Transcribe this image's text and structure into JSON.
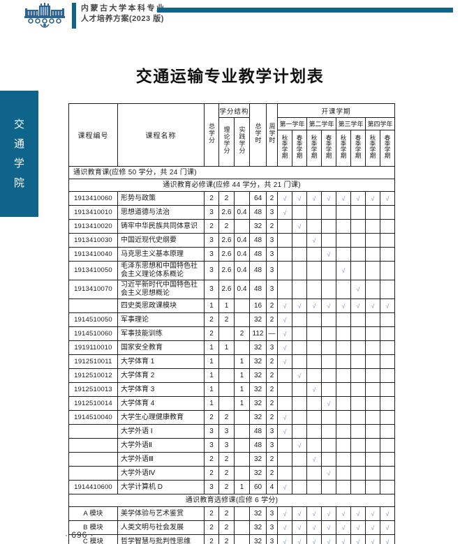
{
  "colors": {
    "accent": "#0f648b",
    "logo": "#2d6391",
    "check": "#7b93bd",
    "border": "#1c1c1c"
  },
  "masthead": {
    "line1": "内蒙古大学本科专业",
    "line2": "人才培养方案(2023 版)",
    "logo_icon": "university-emblem"
  },
  "sidebar": {
    "label": "交通学院",
    "chars": [
      "交",
      "通",
      "学",
      "院"
    ]
  },
  "page": {
    "title": "交通运输专业教学计划表",
    "footer": "· 696 ·"
  },
  "table": {
    "check_glyph": "√",
    "dash_glyph": "—",
    "headers": {
      "course_id": "课程编号",
      "course_name": "课程名称",
      "total_credits": "总学分",
      "credit_structure": "学分结构",
      "theory_credits": "理论学分",
      "practice_credits": "实践学分",
      "total_hours": "总学时",
      "weekly_hours": "周学时",
      "semesters": "开课学期",
      "years": [
        "第一学年",
        "第二学年",
        "第三学年",
        "第四学年"
      ],
      "fall": "秋季学期",
      "spring": "春季学期"
    },
    "rows": [
      {
        "type": "section",
        "align": "left",
        "label": "通识教育课(应修 50 学分，共 24 门课)"
      },
      {
        "type": "section",
        "align": "center",
        "label": "通识教育必修课(应修 44 学分，共 21 门课)"
      },
      {
        "type": "course",
        "id": "1913410060",
        "name": "形势与政策",
        "credits": "2",
        "theory": "2",
        "practice": "",
        "hours": "64",
        "weekly": "2",
        "checks": [
          1,
          1,
          1,
          1,
          1,
          1,
          1,
          1
        ]
      },
      {
        "type": "course",
        "id": "1913410010",
        "name": "思想道德与法治",
        "credits": "3",
        "theory": "2.6",
        "practice": "0.4",
        "hours": "48",
        "weekly": "3",
        "checks": [
          1,
          0,
          0,
          0,
          0,
          0,
          0,
          0
        ]
      },
      {
        "type": "course",
        "id": "1913410020",
        "name": "铸牢中华民族共同体意识",
        "credits": "2",
        "theory": "2",
        "practice": "",
        "hours": "32",
        "weekly": "2",
        "checks": [
          0,
          1,
          0,
          0,
          0,
          0,
          0,
          0
        ]
      },
      {
        "type": "course",
        "id": "1913410030",
        "name": "中国近现代史纲要",
        "credits": "3",
        "theory": "2.6",
        "practice": "0.4",
        "hours": "48",
        "weekly": "3",
        "checks": [
          0,
          0,
          1,
          0,
          0,
          0,
          0,
          0
        ]
      },
      {
        "type": "course",
        "id": "1913410040",
        "name": "马克思主义基本原理",
        "credits": "3",
        "theory": "2.6",
        "practice": "0.4",
        "hours": "48",
        "weekly": "3",
        "checks": [
          0,
          0,
          0,
          1,
          0,
          0,
          0,
          0
        ]
      },
      {
        "type": "course",
        "id": "1913410050",
        "name": "毛泽东思想和中国特色社会主义理论体系概论",
        "credits": "3",
        "theory": "2.6",
        "practice": "0.4",
        "hours": "48",
        "weekly": "3",
        "checks": [
          0,
          0,
          0,
          0,
          1,
          0,
          0,
          0
        ]
      },
      {
        "type": "course",
        "id": "1913410070",
        "name": "习近平新时代中国特色社会主义思想概论",
        "credits": "3",
        "theory": "2.6",
        "practice": "0.4",
        "hours": "48",
        "weekly": "3",
        "checks": [
          0,
          0,
          0,
          0,
          0,
          1,
          0,
          0
        ]
      },
      {
        "type": "course",
        "id": "",
        "name": "四史类思政课模块",
        "credits": "1",
        "theory": "1",
        "practice": "",
        "hours": "16",
        "weekly": "2",
        "checks": [
          1,
          1,
          1,
          1,
          1,
          1,
          1,
          1
        ]
      },
      {
        "type": "course",
        "id": "1914510050",
        "name": "军事理论",
        "credits": "2",
        "theory": "2",
        "practice": "",
        "hours": "32",
        "weekly": "2",
        "checks": [
          1,
          0,
          0,
          0,
          0,
          0,
          0,
          0
        ]
      },
      {
        "type": "course",
        "id": "1914510060",
        "name": "军事技能训练",
        "credits": "2",
        "theory": "",
        "practice": "2",
        "hours": "112",
        "weekly": "—",
        "checks": [
          1,
          0,
          0,
          0,
          0,
          0,
          0,
          0
        ]
      },
      {
        "type": "course",
        "id": "1919110010",
        "name": "国家安全教育",
        "credits": "1",
        "theory": "1",
        "practice": "",
        "hours": "32",
        "weekly": "3",
        "checks": [
          1,
          0,
          0,
          0,
          0,
          0,
          0,
          0
        ]
      },
      {
        "type": "course",
        "id": "1912510011",
        "name": "大学体育 1",
        "credits": "1",
        "theory": "",
        "practice": "1",
        "hours": "32",
        "weekly": "2",
        "checks": [
          1,
          0,
          0,
          0,
          0,
          0,
          0,
          0
        ]
      },
      {
        "type": "course",
        "id": "1912510012",
        "name": "大学体育 2",
        "credits": "1",
        "theory": "",
        "practice": "1",
        "hours": "32",
        "weekly": "2",
        "checks": [
          0,
          1,
          0,
          0,
          0,
          0,
          0,
          0
        ]
      },
      {
        "type": "course",
        "id": "1912510013",
        "name": "大学体育 3",
        "credits": "1",
        "theory": "",
        "practice": "1",
        "hours": "32",
        "weekly": "2",
        "checks": [
          0,
          0,
          1,
          0,
          0,
          0,
          0,
          0
        ]
      },
      {
        "type": "course",
        "id": "1912510014",
        "name": "大学体育 4",
        "credits": "1",
        "theory": "",
        "practice": "1",
        "hours": "32",
        "weekly": "2",
        "checks": [
          0,
          0,
          0,
          1,
          0,
          0,
          0,
          0
        ]
      },
      {
        "type": "course",
        "id": "1914510040",
        "name": "大学生心理健康教育",
        "credits": "2",
        "theory": "2",
        "practice": "",
        "hours": "32",
        "weekly": "2",
        "checks": [
          1,
          0,
          0,
          0,
          0,
          0,
          0,
          0
        ]
      },
      {
        "type": "course",
        "id": "",
        "name": "大学外语 Ⅰ",
        "credits": "3",
        "theory": "3",
        "practice": "",
        "hours": "48",
        "weekly": "3",
        "checks": [
          1,
          0,
          0,
          0,
          0,
          0,
          0,
          0
        ]
      },
      {
        "type": "course",
        "id": "",
        "name": "大学外语Ⅱ",
        "credits": "3",
        "theory": "3",
        "practice": "",
        "hours": "48",
        "weekly": "3",
        "checks": [
          0,
          1,
          0,
          0,
          0,
          0,
          0,
          0
        ]
      },
      {
        "type": "course",
        "id": "",
        "name": "大学外语Ⅲ",
        "credits": "2",
        "theory": "2",
        "practice": "",
        "hours": "32",
        "weekly": "2",
        "checks": [
          0,
          0,
          1,
          0,
          0,
          0,
          0,
          0
        ]
      },
      {
        "type": "course",
        "id": "",
        "name": "大学外语Ⅳ",
        "credits": "2",
        "theory": "2",
        "practice": "",
        "hours": "32",
        "weekly": "2",
        "checks": [
          0,
          0,
          0,
          1,
          0,
          0,
          0,
          0
        ]
      },
      {
        "type": "course",
        "id": "1914410600",
        "name": "大学计算机 D",
        "credits": "3",
        "theory": "2",
        "practice": "1",
        "hours": "60",
        "weekly": "4",
        "checks": [
          1,
          0,
          0,
          0,
          0,
          0,
          0,
          0
        ]
      },
      {
        "type": "section",
        "align": "center",
        "label": "通识教育选修课(应修 6 学分)"
      },
      {
        "type": "course",
        "id": "A 模块",
        "name": "美学体验与艺术鉴赏",
        "credits": "2",
        "theory": "2",
        "practice": "",
        "hours": "32",
        "weekly": "3",
        "checks": [
          1,
          1,
          1,
          1,
          1,
          1,
          1,
          1
        ]
      },
      {
        "type": "course",
        "id": "B 模块",
        "name": "人类文明与社会发展",
        "credits": "2",
        "theory": "2",
        "practice": "",
        "hours": "32",
        "weekly": "3",
        "checks": [
          1,
          1,
          1,
          1,
          1,
          1,
          1,
          1
        ]
      },
      {
        "type": "course",
        "id": "C 模块",
        "name": "哲学智慧与批判性思维",
        "credits": "2",
        "theory": "2",
        "practice": "",
        "hours": "32",
        "weekly": "3",
        "checks": [
          1,
          1,
          1,
          1,
          1,
          1,
          1,
          1
        ]
      }
    ]
  }
}
